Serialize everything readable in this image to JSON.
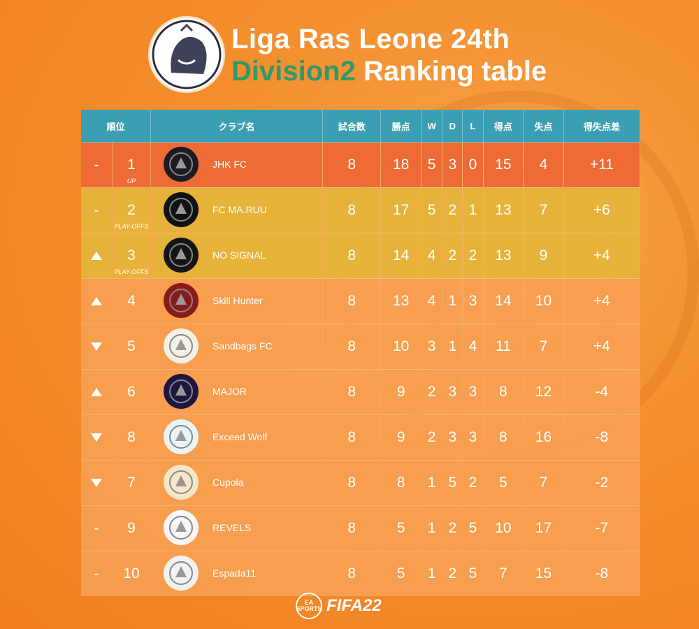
{
  "header": {
    "logo_label": "Liga Ras Leone",
    "title_line1": "Liga Ras Leone 24th",
    "title_division": "Division2",
    "title_rest": " Ranking table"
  },
  "table": {
    "headers": [
      "順位",
      "クラブ名",
      "試合数",
      "勝点",
      "W",
      "D",
      "L",
      "得点",
      "失点",
      "得失点差"
    ],
    "rows": [
      {
        "move": "-",
        "rank": "1",
        "tag": "UP",
        "club": "JHK FC",
        "mp": "8",
        "pts": "18",
        "w": "5",
        "d": "3",
        "l": "0",
        "gf": "15",
        "ga": "4",
        "gd": "+11",
        "status": "up",
        "crest_color": "#1b1b24"
      },
      {
        "move": "-",
        "rank": "2",
        "tag": "PLAY-OFFS",
        "club": "FC MA.RUU",
        "mp": "8",
        "pts": "17",
        "w": "5",
        "d": "2",
        "l": "1",
        "gf": "13",
        "ga": "7",
        "gd": "+6",
        "status": "playoff",
        "crest_color": "#111111"
      },
      {
        "move": "up",
        "rank": "3",
        "tag": "PLAY-OFFS",
        "club": "NO SIGNAL",
        "mp": "8",
        "pts": "14",
        "w": "4",
        "d": "2",
        "l": "2",
        "gf": "13",
        "ga": "9",
        "gd": "+4",
        "status": "playoff",
        "crest_color": "#151515"
      },
      {
        "move": "up",
        "rank": "4",
        "tag": "",
        "club": "Skill Hunter",
        "mp": "8",
        "pts": "13",
        "w": "4",
        "d": "1",
        "l": "3",
        "gf": "14",
        "ga": "10",
        "gd": "+4",
        "status": "normal",
        "crest_color": "#8a1a1a"
      },
      {
        "move": "down",
        "rank": "5",
        "tag": "",
        "club": "Sandbags FC",
        "mp": "8",
        "pts": "10",
        "w": "3",
        "d": "1",
        "l": "4",
        "gf": "11",
        "ga": "7",
        "gd": "+4",
        "status": "normal",
        "crest_color": "#f4f1e6"
      },
      {
        "move": "up",
        "rank": "6",
        "tag": "",
        "club": "MAJOR",
        "mp": "8",
        "pts": "9",
        "w": "2",
        "d": "3",
        "l": "3",
        "gf": "8",
        "ga": "12",
        "gd": "-4",
        "status": "normal",
        "crest_color": "#1d1640"
      },
      {
        "move": "down",
        "rank": "8",
        "tag": "",
        "club": "Exceed Wolf",
        "mp": "8",
        "pts": "9",
        "w": "2",
        "d": "3",
        "l": "3",
        "gf": "8",
        "ga": "16",
        "gd": "-8",
        "status": "normal",
        "crest_color": "#e9f4f8"
      },
      {
        "move": "down",
        "rank": "7",
        "tag": "",
        "club": "Cupola",
        "mp": "8",
        "pts": "8",
        "w": "1",
        "d": "5",
        "l": "2",
        "gf": "5",
        "ga": "7",
        "gd": "-2",
        "status": "normal",
        "crest_color": "#f6e7c8"
      },
      {
        "move": "-",
        "rank": "9",
        "tag": "",
        "club": "REVELS",
        "mp": "8",
        "pts": "5",
        "w": "1",
        "d": "2",
        "l": "5",
        "gf": "10",
        "ga": "17",
        "gd": "-7",
        "status": "normal",
        "crest_color": "#f7f7f7"
      },
      {
        "move": "-",
        "rank": "10",
        "tag": "",
        "club": "Espada11",
        "mp": "8",
        "pts": "5",
        "w": "1",
        "d": "2",
        "l": "5",
        "gf": "7",
        "ga": "15",
        "gd": "-8",
        "status": "normal",
        "crest_color": "#f2f2f2"
      }
    ]
  },
  "footer": {
    "ea_label": "EA SPORTS",
    "fifa_label": "FIFA22"
  }
}
